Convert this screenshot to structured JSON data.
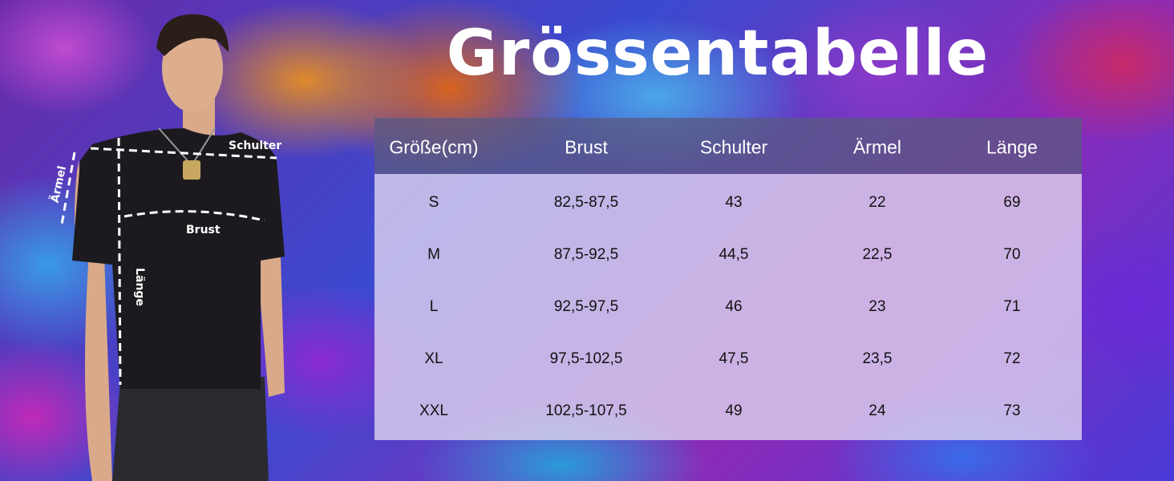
{
  "title": "Grössentabelle",
  "diagram_labels": {
    "shoulder": "Schulter",
    "sleeve": "Ärmel",
    "chest": "Brust",
    "length": "Länge"
  },
  "table": {
    "headers": [
      "Größe(cm)",
      "Brust",
      "Schulter",
      "Ärmel",
      "Länge"
    ],
    "rows": [
      [
        "S",
        "82,5-87,5",
        "43",
        "22",
        "69"
      ],
      [
        "M",
        "87,5-92,5",
        "44,5",
        "22,5",
        "70"
      ],
      [
        "L",
        "92,5-97,5",
        "46",
        "23",
        "71"
      ],
      [
        "XL",
        "97,5-102,5",
        "47,5",
        "23,5",
        "72"
      ],
      [
        "XXL",
        "102,5-107,5",
        "49",
        "24",
        "73"
      ]
    ]
  },
  "colors": {
    "header_bg": "#5a5a82",
    "body_bg": "#e1d7f0",
    "shirt": "#1c1a1e"
  }
}
